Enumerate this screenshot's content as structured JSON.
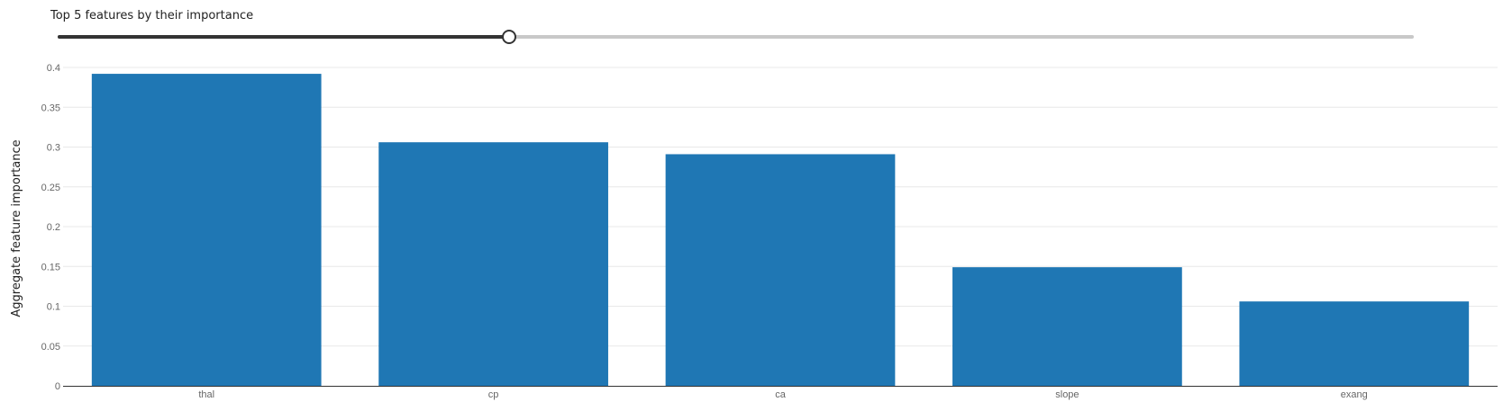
{
  "slider": {
    "title": "Top 5 features by their importance",
    "value_fraction": 0.333
  },
  "colors": {
    "bar": "#1f77b4",
    "grid": "#e8e8e8",
    "axis": "#333333"
  },
  "chart_data": {
    "type": "bar",
    "categories": [
      "thal",
      "cp",
      "ca",
      "slope",
      "exang"
    ],
    "values": [
      0.392,
      0.306,
      0.291,
      0.149,
      0.106
    ],
    "title": "",
    "xlabel": "",
    "ylabel": "Aggregate feature importance",
    "ylim": [
      0,
      0.4
    ],
    "yticks": [
      "0",
      "0.05",
      "0.1",
      "0.15",
      "0.2",
      "0.25",
      "0.3",
      "0.35",
      "0.4"
    ],
    "grid": true,
    "legend": false
  }
}
